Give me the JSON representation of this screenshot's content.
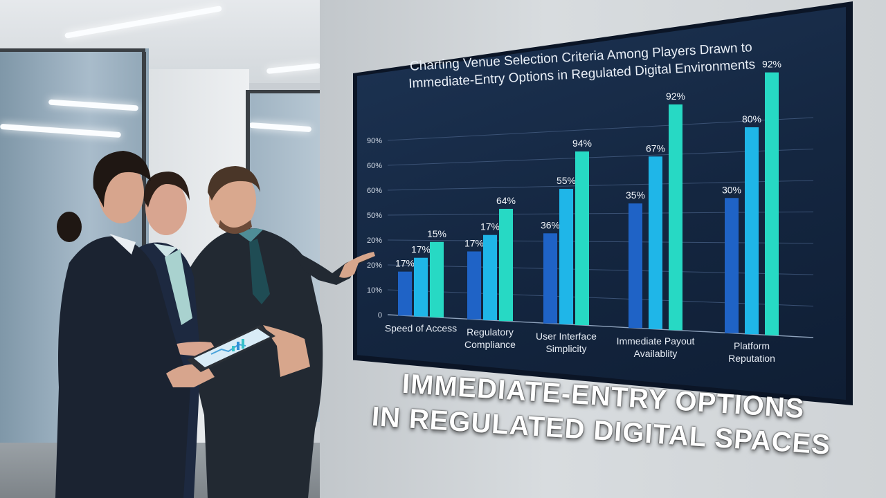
{
  "chart": {
    "title_line1": "Charting Venue Selection Criteria Among Players Drawn to",
    "title_line2": "Immediate-Entry Options in Regulated Digital Environments",
    "y_ticks": [
      "0",
      "10%",
      "20%",
      "20%",
      "50%",
      "60%",
      "60%",
      "90%"
    ],
    "categories": [
      [
        "Speed of Access"
      ],
      [
        "Regulatory",
        "Compliance"
      ],
      [
        "User Interface",
        "Simplicity"
      ],
      [
        "Immediate Payout",
        "Availablity"
      ],
      [
        "Platform",
        "Reputation"
      ]
    ],
    "bar_labels": [
      [
        "17%",
        "17%",
        "15%"
      ],
      [
        "17%",
        "17%",
        "64%"
      ],
      [
        "36%",
        "55%",
        "94%"
      ],
      [
        "35%",
        "67%",
        "92%"
      ],
      [
        "30%",
        "80%",
        "92%"
      ]
    ],
    "colors": {
      "series1": "#1f63c6",
      "series2": "#1fb6e8",
      "series3": "#27d9c4"
    }
  },
  "headline": {
    "line1": "IMMEDIATE-ENTRY OPTIONS",
    "line2": "IN REGULATED DIGITAL SPACES"
  }
}
